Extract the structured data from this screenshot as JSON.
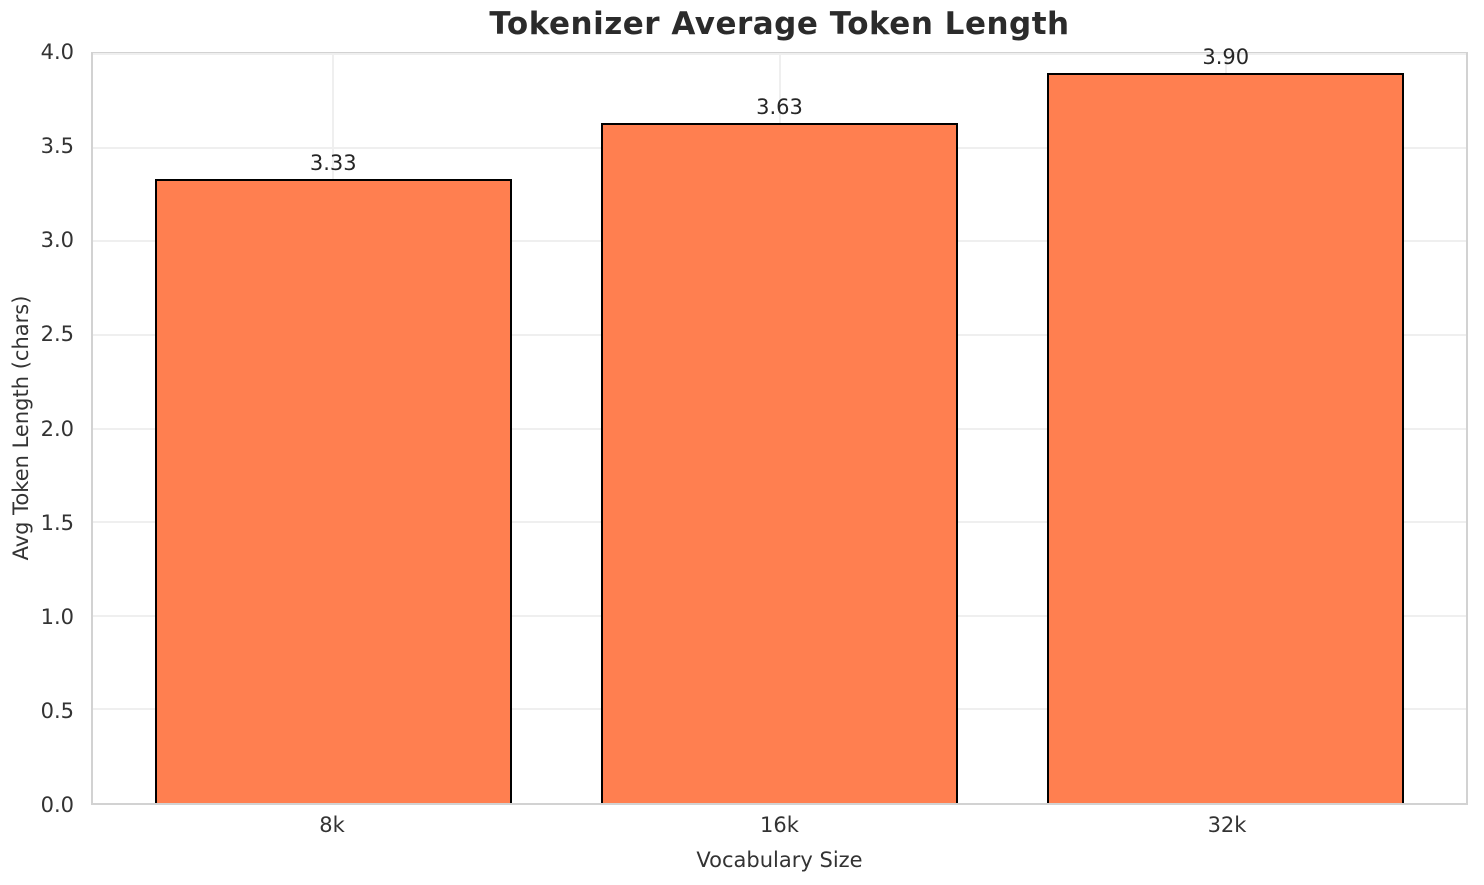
{
  "chart_data": {
    "type": "bar",
    "title": "Tokenizer Average Token Length",
    "xlabel": "Vocabulary Size",
    "ylabel": "Avg Token Length (chars)",
    "categories": [
      "8k",
      "16k",
      "32k"
    ],
    "values": [
      3.33,
      3.63,
      3.9
    ],
    "value_labels": [
      "3.33",
      "3.63",
      "3.90"
    ],
    "ylim": [
      0,
      4.0
    ],
    "yticks": [
      "0.0",
      "0.5",
      "1.0",
      "1.5",
      "2.0",
      "2.5",
      "3.0",
      "3.5",
      "4.0"
    ],
    "grid": "both",
    "legend_position": "none",
    "bar_color": "#FF7F50",
    "bar_edge_color": "#000000",
    "grid_color": "#efefef",
    "spine_color": "#d2d2d2",
    "text_color": "#333333",
    "title_color": "#2b2b2b"
  }
}
